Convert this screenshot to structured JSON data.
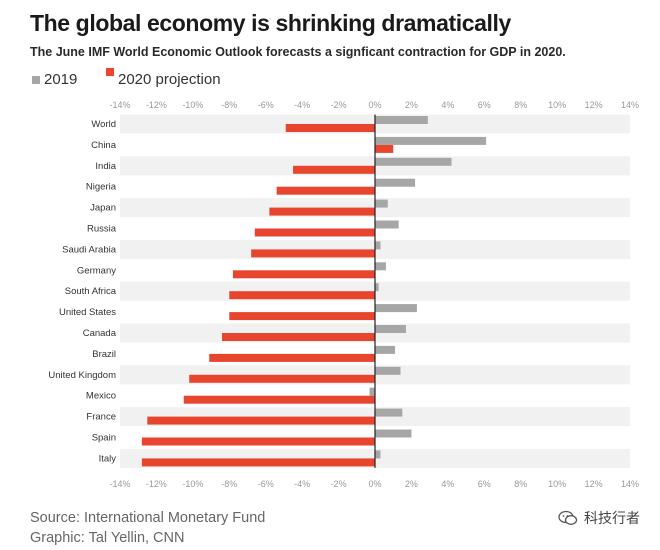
{
  "title": "The global economy is shrinking dramatically",
  "subtitle": "The June IMF World Economic Outlook forecasts a signficant contraction for GDP in 2020.",
  "source": "Source: International Monetary Fund",
  "graphic": "Graphic: Tal Yellin, CNN",
  "watermark": "科技行者",
  "colors": {
    "series_2019": "#a6a6a6",
    "series_2020": "#e8452f",
    "band": "#f1f1f1",
    "zero_line": "#222222",
    "tick": "#999999"
  },
  "chart_data": {
    "type": "bar",
    "orientation": "horizontal",
    "title": "The global economy is shrinking dramatically",
    "subtitle": "The June IMF World Economic Outlook forecasts a signficant contraction for GDP in 2020.",
    "categories": [
      "World",
      "China",
      "India",
      "Nigeria",
      "Japan",
      "Russia",
      "Saudi Arabia",
      "Germany",
      "South Africa",
      "United States",
      "Canada",
      "Brazil",
      "United Kingdom",
      "Mexico",
      "France",
      "Spain",
      "Italy"
    ],
    "series": [
      {
        "name": "2019",
        "color": "#a6a6a6",
        "values": [
          2.9,
          6.1,
          4.2,
          2.2,
          0.7,
          1.3,
          0.3,
          0.6,
          0.2,
          2.3,
          1.7,
          1.1,
          1.4,
          -0.3,
          1.5,
          2.0,
          0.3
        ]
      },
      {
        "name": "2020 projection",
        "color": "#e8452f",
        "values": [
          -4.9,
          1.0,
          -4.5,
          -5.4,
          -5.8,
          -6.6,
          -6.8,
          -7.8,
          -8.0,
          -8.0,
          -8.4,
          -9.1,
          -10.2,
          -10.5,
          -12.5,
          -12.8,
          -12.8
        ]
      }
    ],
    "xlim": [
      -14,
      14
    ],
    "x_ticks": [
      -14,
      -12,
      -10,
      -8,
      -6,
      -4,
      -2,
      0,
      2,
      4,
      6,
      8,
      10,
      12,
      14
    ],
    "tick_labels": [
      "-14%",
      "-12%",
      "-10%",
      "-8%",
      "-6%",
      "-4%",
      "-2%",
      "0%",
      "2%",
      "4%",
      "6%",
      "8%",
      "10%",
      "12%",
      "14%"
    ],
    "legend_position": "top-left",
    "tick_labels_position": "top and bottom"
  }
}
